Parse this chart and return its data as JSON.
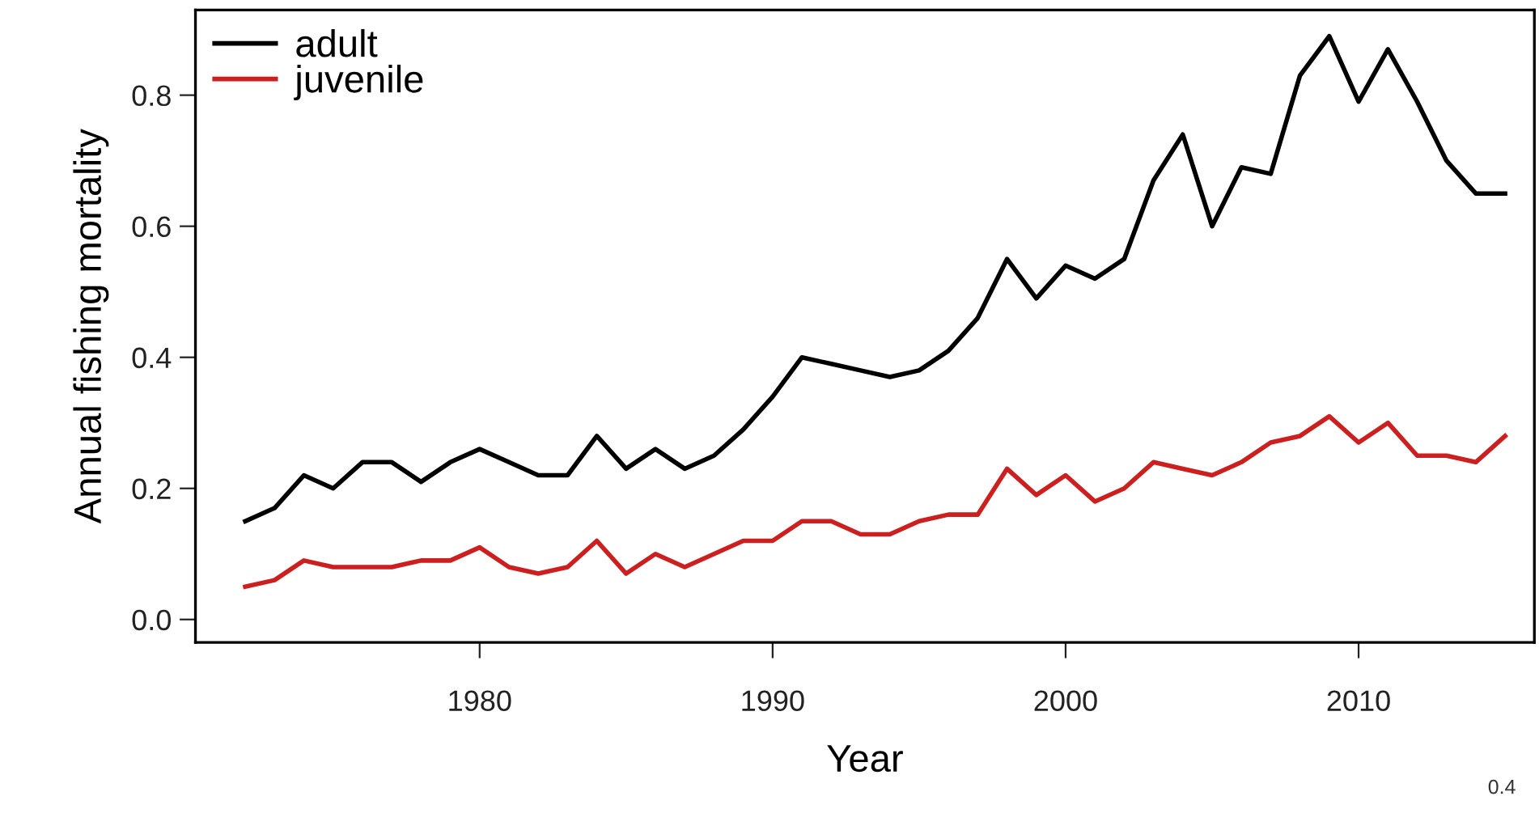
{
  "chart_data": {
    "type": "line",
    "xlabel": "Year",
    "ylabel": "Annual fishing mortality",
    "x": [
      1972,
      1973,
      1974,
      1975,
      1976,
      1977,
      1978,
      1979,
      1980,
      1981,
      1982,
      1983,
      1984,
      1985,
      1986,
      1987,
      1988,
      1989,
      1990,
      1991,
      1992,
      1993,
      1994,
      1995,
      1996,
      1997,
      1998,
      1999,
      2000,
      2001,
      2002,
      2003,
      2004,
      2005,
      2006,
      2007,
      2008,
      2009,
      2010,
      2011,
      2012,
      2013,
      2014,
      2015
    ],
    "series": [
      {
        "name": "adult",
        "color": "#000000",
        "values": [
          0.15,
          0.17,
          0.22,
          0.2,
          0.24,
          0.24,
          0.21,
          0.24,
          0.26,
          0.24,
          0.22,
          0.22,
          0.28,
          0.23,
          0.26,
          0.23,
          0.25,
          0.29,
          0.34,
          0.4,
          0.39,
          0.38,
          0.37,
          0.38,
          0.41,
          0.46,
          0.55,
          0.49,
          0.54,
          0.52,
          0.55,
          0.67,
          0.74,
          0.6,
          0.69,
          0.68,
          0.83,
          0.89,
          0.79,
          0.87,
          0.79,
          0.7,
          0.65,
          0.65
        ]
      },
      {
        "name": "juvenile",
        "color": "#cc1f1f",
        "values": [
          0.05,
          0.06,
          0.09,
          0.08,
          0.08,
          0.08,
          0.09,
          0.09,
          0.11,
          0.08,
          0.07,
          0.08,
          0.12,
          0.07,
          0.1,
          0.08,
          0.1,
          0.12,
          0.12,
          0.15,
          0.15,
          0.13,
          0.13,
          0.15,
          0.16,
          0.16,
          0.23,
          0.19,
          0.22,
          0.18,
          0.2,
          0.24,
          0.23,
          0.22,
          0.24,
          0.27,
          0.28,
          0.31,
          0.27,
          0.3,
          0.25,
          0.25,
          0.24,
          0.28
        ]
      }
    ],
    "xlim": [
      1970.3,
      2016
    ],
    "xticks": [
      1980,
      1990,
      2000,
      2010
    ],
    "ylim": [
      -0.035,
      0.93
    ],
    "yticks": [
      {
        "value": 0,
        "label": "0.0"
      },
      0.2,
      0.4,
      0.6,
      0.8
    ],
    "legend": "top left",
    "grid": false,
    "line_style": "solid",
    "marker": "none",
    "annotations": [
      "0.4"
    ]
  }
}
